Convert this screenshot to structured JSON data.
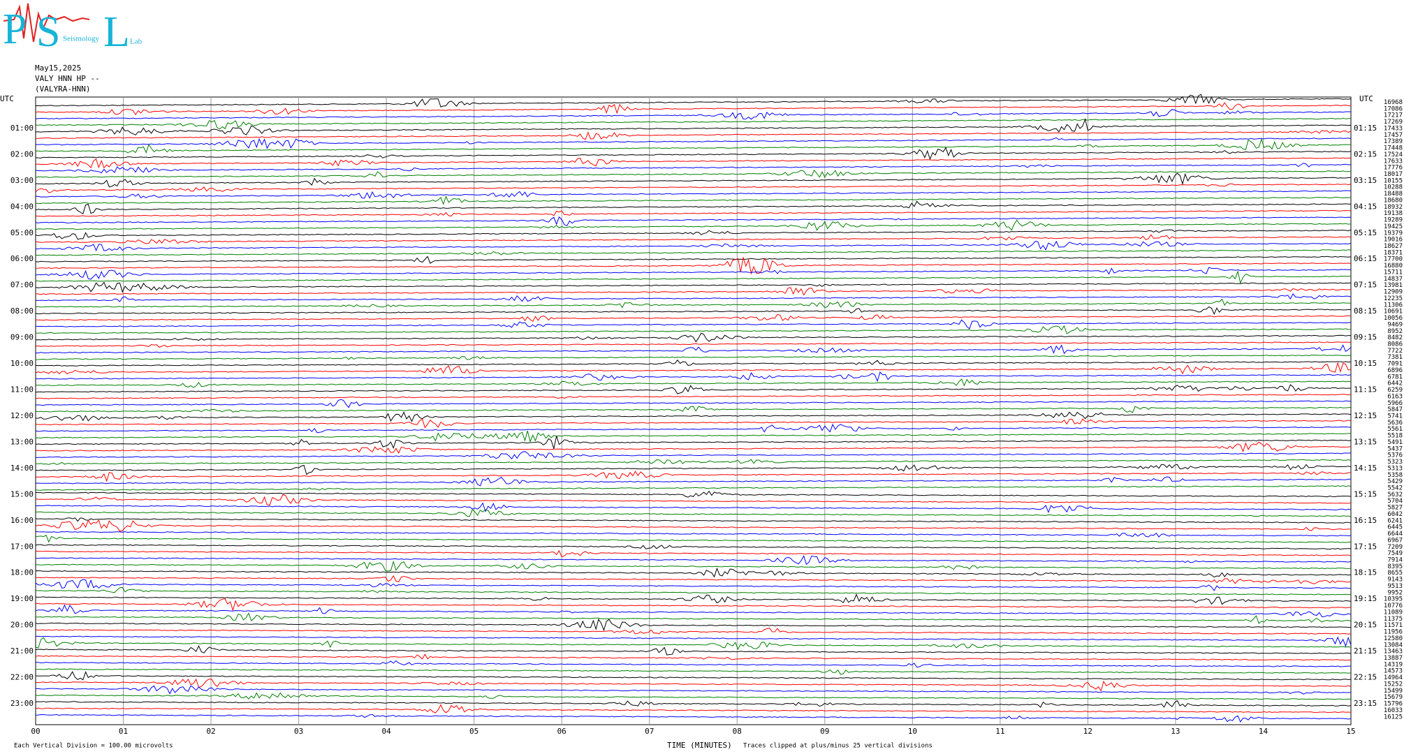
{
  "logo": {
    "letters": [
      "P",
      "S",
      "L"
    ],
    "words": [
      "Seismology",
      "Lab"
    ]
  },
  "header": {
    "date": "May15,2025",
    "station": "VALY HNN HP --",
    "site": "(VALYRA-HNN)"
  },
  "left_axis": {
    "title": "UTC",
    "labels": [
      "01:00",
      "02:00",
      "03:00",
      "04:00",
      "05:00",
      "06:00",
      "07:00",
      "08:00",
      "09:00",
      "10:00",
      "11:00",
      "12:00",
      "13:00",
      "14:00",
      "15:00",
      "16:00",
      "17:00",
      "18:00",
      "19:00",
      "20:00",
      "21:00",
      "22:00",
      "23:00"
    ]
  },
  "right_axis": {
    "title": "UTC",
    "labels": [
      "01:15",
      "02:15",
      "03:15",
      "04:15",
      "05:15",
      "06:15",
      "07:15",
      "08:15",
      "09:15",
      "10:15",
      "11:15",
      "12:15",
      "13:15",
      "14:15",
      "15:15",
      "16:15",
      "17:15",
      "18:15",
      "19:15",
      "20:15",
      "21:15",
      "22:15",
      "23:15"
    ],
    "trace_values": [
      "16968",
      "17086",
      "17217",
      "17269",
      "17433",
      "17457",
      "17389",
      "17448",
      "17524",
      "17633",
      "17776",
      "18017",
      "10155",
      "10288",
      "18488",
      "18680",
      "18932",
      "19138",
      "19289",
      "19425",
      "19379",
      "19016",
      "18627",
      "18371",
      "17700",
      "16880",
      "15711",
      "14837",
      "13981",
      "12909",
      "12235",
      "11306",
      "10691",
      "10056",
      "9469",
      "8952",
      "8482",
      "8086",
      "7722",
      "7381",
      "7091",
      "6896",
      "6781",
      "6442",
      "6259",
      "6163",
      "5966",
      "5847",
      "5741",
      "5636",
      "5561",
      "5518",
      "5491",
      "5437",
      "5376",
      "5323",
      "5313",
      "5358",
      "5429",
      "5542",
      "5632",
      "5704",
      "5827",
      "6042",
      "6241",
      "6445",
      "6644",
      "6967",
      "7209",
      "7549",
      "7914",
      "8395",
      "8655",
      "9143",
      "9513",
      "9952",
      "10395",
      "10776",
      "11089",
      "11375",
      "11571",
      "11956",
      "12580",
      "13084",
      "13463",
      "13887",
      "14319",
      "14573",
      "14964",
      "15252",
      "15499",
      "15679",
      "15796",
      "16033",
      "16125"
    ]
  },
  "x_axis": {
    "title": "TIME (MINUTES)",
    "labels": [
      "00",
      "01",
      "02",
      "03",
      "04",
      "05",
      "06",
      "07",
      "08",
      "09",
      "10",
      "11",
      "12",
      "13",
      "14",
      "15"
    ]
  },
  "footer": {
    "scale": "Each Vertical Division =  100.00 microvolts",
    "clip": "Traces clipped at plus/minus 25 vertical divisions"
  },
  "trace_colors": [
    "#000000",
    "#ff0000",
    "#0000ff",
    "#008000"
  ]
}
